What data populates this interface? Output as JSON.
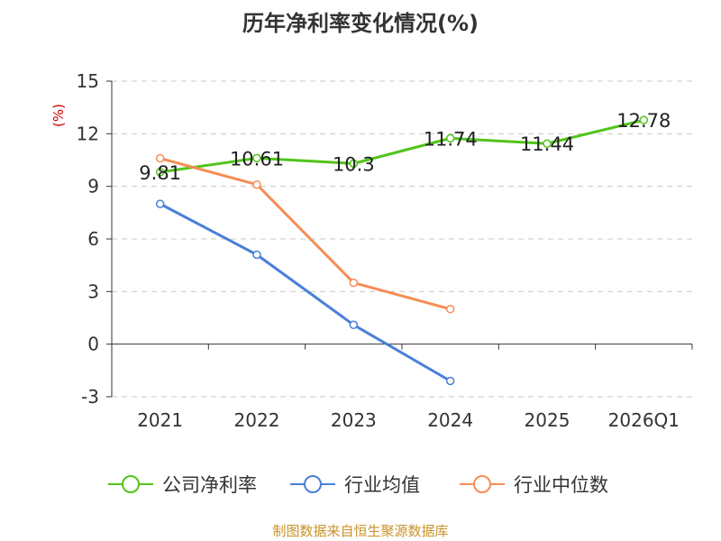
{
  "chart_data": {
    "type": "line",
    "title": "历年净利率变化情况(%)",
    "ylabel": "(%)",
    "categories": [
      "2021",
      "2022",
      "2023",
      "2024",
      "2025",
      "2026Q1"
    ],
    "ylim": [
      -3,
      15
    ],
    "yticks": [
      "15",
      "12",
      "9",
      "6",
      "3",
      "0",
      "-3"
    ],
    "grid": true,
    "legend_position": "bottom",
    "series": [
      {
        "name": "公司净利率",
        "color": "#52c41a",
        "values": [
          9.81,
          10.61,
          10.3,
          11.74,
          11.44,
          12.78
        ],
        "labels": [
          "9.81",
          "10.61",
          "10.3",
          "11.74",
          "11.44",
          "12.78"
        ]
      },
      {
        "name": "行业均值",
        "color": "#4a7fd9",
        "values": [
          8.0,
          5.1,
          1.1,
          -2.1,
          null,
          null
        ]
      },
      {
        "name": "行业中位数",
        "color": "#f58d55",
        "values": [
          10.6,
          9.1,
          3.5,
          2.0,
          null,
          null
        ]
      }
    ]
  },
  "footer": "制图数据来自恒生聚源数据库"
}
